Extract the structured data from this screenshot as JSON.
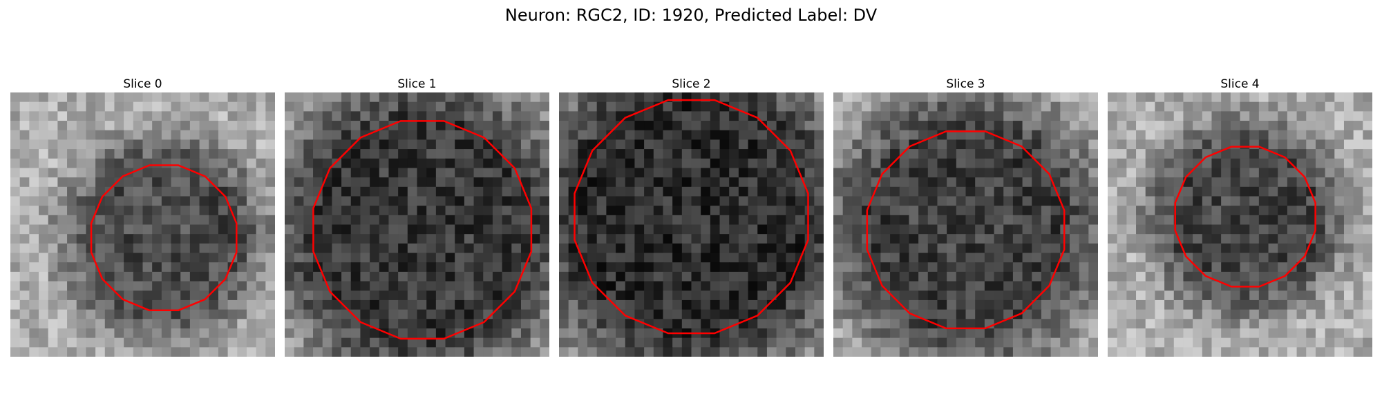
{
  "figure": {
    "title": "Neuron: RGC2, ID: 1920, Predicted Label: DV",
    "outline_color": "#ff0000"
  },
  "panels": [
    {
      "title": "Slice 0",
      "seed": 11,
      "dark_center": [
        0.58,
        0.55
      ],
      "dark_radius": 0.28,
      "dark_level": 0.3
    },
    {
      "title": "Slice 1",
      "seed": 23,
      "dark_center": [
        0.52,
        0.52
      ],
      "dark_radius": 0.42,
      "dark_level": 0.22
    },
    {
      "title": "Slice 2",
      "seed": 37,
      "dark_center": [
        0.5,
        0.47
      ],
      "dark_radius": 0.45,
      "dark_level": 0.18
    },
    {
      "title": "Slice 3",
      "seed": 51,
      "dark_center": [
        0.5,
        0.52
      ],
      "dark_radius": 0.38,
      "dark_level": 0.25
    },
    {
      "title": "Slice 4",
      "seed": 67,
      "dark_center": [
        0.52,
        0.47
      ],
      "dark_radius": 0.27,
      "dark_level": 0.28
    }
  ]
}
